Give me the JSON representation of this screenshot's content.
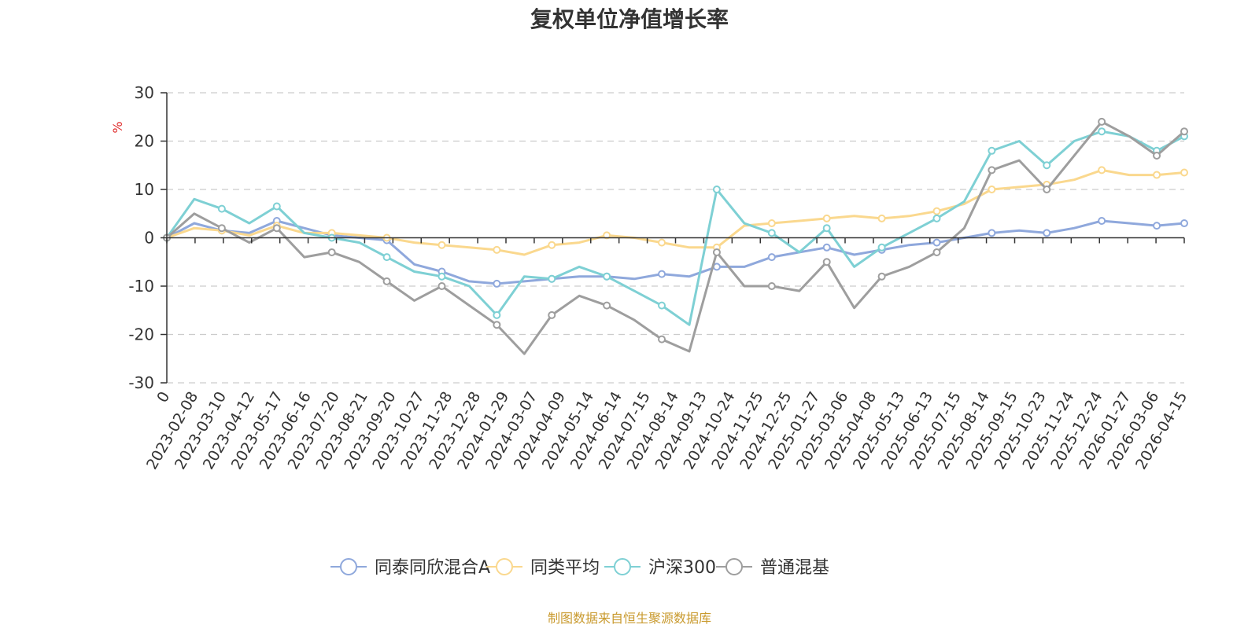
{
  "chart_data": {
    "type": "line",
    "title": "复权单位净值增长率",
    "ylabel": "%",
    "ylim": [
      -30,
      30
    ],
    "y_ticks": [
      30,
      20,
      10,
      0,
      -10,
      -20,
      -30
    ],
    "x_tick_labels": [
      "0",
      "2023-02-08",
      "2023-03-10",
      "2023-04-12",
      "2023-05-17",
      "2023-06-16",
      "2023-07-20",
      "2023-08-21",
      "2023-09-20",
      "2023-10-27",
      "2023-11-28",
      "2023-12-28",
      "2024-01-29",
      "2024-03-07",
      "2024-04-09",
      "2024-05-14",
      "2024-06-14",
      "2024-07-15",
      "2024-08-14",
      "2024-09-13",
      "2024-10-24",
      "2024-11-25",
      "2024-12-25",
      "2025-01-27",
      "2025-03-06",
      "2025-04-08",
      "2025-05-13",
      "2025-06-13",
      "2025-07-15",
      "2025-08-14",
      "2025-09-15",
      "2025-10-23",
      "2025-11-24",
      "2025-12-24",
      "2026-01-27",
      "2026-03-06",
      "2026-04-15"
    ],
    "grid": true,
    "legend_position": "bottom",
    "source": "制图数据来自恒生聚源数据库",
    "series": [
      {
        "name": "同泰同欣混合A",
        "color": "#8FA8DC",
        "values": [
          0,
          3,
          1.5,
          1,
          3.5,
          2,
          0.5,
          0,
          -0.5,
          -5.5,
          -7,
          -9,
          -9.5,
          -9,
          -8.5,
          -8,
          -8,
          -8.5,
          -7.5,
          -8,
          -6,
          -6,
          -4,
          -3,
          -2,
          -3.5,
          -2.5,
          -1.5,
          -1,
          0,
          1,
          1.5,
          1,
          2,
          3.5,
          3,
          2.5,
          3
        ]
      },
      {
        "name": "同类平均",
        "color": "#FAD88E",
        "values": [
          0,
          2,
          1.5,
          0.5,
          2.5,
          1,
          1,
          0.5,
          0,
          -1,
          -1.5,
          -2,
          -2.5,
          -3.5,
          -1.5,
          -1,
          0.5,
          0,
          -1,
          -2,
          -2,
          2.5,
          3,
          3.5,
          4,
          4.5,
          4,
          4.5,
          5.5,
          7,
          10,
          10.5,
          11,
          12,
          14,
          13,
          13,
          13.5
        ]
      },
      {
        "name": "沪深300",
        "color": "#7ED0D4",
        "values": [
          0,
          8,
          6,
          3,
          6.5,
          1,
          0,
          -1,
          -4,
          -7,
          -8,
          -10,
          -16,
          -8,
          -8.5,
          -6,
          -8,
          -11,
          -14,
          -18,
          10,
          3,
          1,
          -3,
          2,
          -6,
          -2,
          1,
          4,
          7.5,
          18,
          20,
          15,
          20,
          22,
          21,
          18,
          21
        ]
      },
      {
        "name": "普通混基",
        "color": "#9E9E9E",
        "values": [
          0,
          5,
          2,
          -1,
          2,
          -4,
          -3,
          -5,
          -9,
          -13,
          -10,
          -14,
          -18,
          -24,
          -16,
          -12,
          -14,
          -17,
          -21,
          -23.5,
          -3,
          -10,
          -10,
          -11,
          -5,
          -14.5,
          -8,
          -6,
          -3,
          2,
          14,
          16,
          10,
          17,
          24,
          21,
          17,
          22
        ]
      }
    ]
  }
}
